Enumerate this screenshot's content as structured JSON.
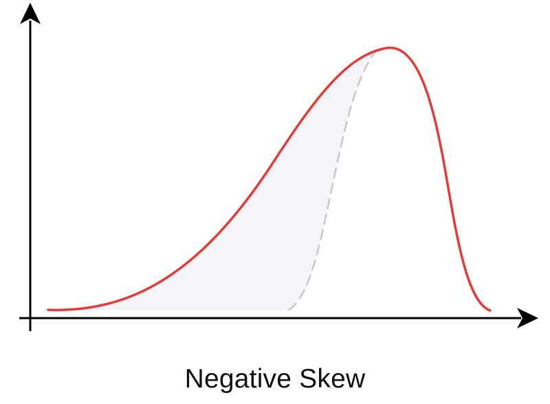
{
  "diagram": {
    "caption": "Negative Skew"
  },
  "colors": {
    "curve": "#e53935",
    "reference_curve": "#c7c7cc",
    "tail_fill": "#f5f5f9",
    "axis": "#000000"
  }
}
